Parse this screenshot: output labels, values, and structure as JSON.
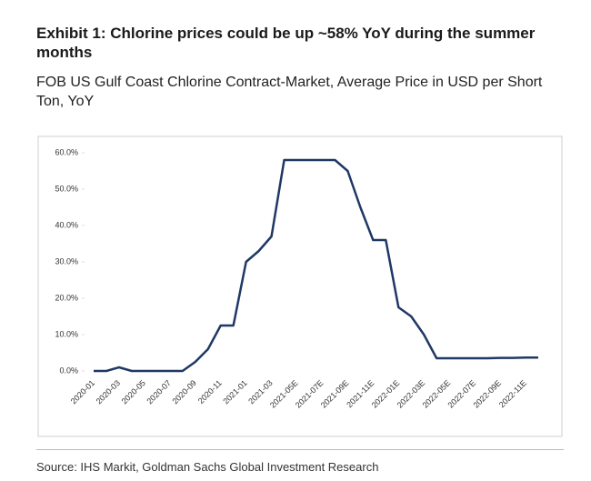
{
  "chart_data": {
    "type": "line",
    "title": "Exhibit 1: Chlorine prices could be up ~58% YoY during the summer months",
    "subtitle": "FOB US Gulf Coast Chlorine Contract-Market, Average Price in USD per Short Ton, YoY",
    "source": "Source: IHS Markit, Goldman Sachs Global Investment Research",
    "categories": [
      "2020-01",
      null,
      "2020-03",
      null,
      "2020-05",
      null,
      "2020-07",
      null,
      "2020-09",
      null,
      "2020-11",
      null,
      "2021-01",
      null,
      "2021-03",
      null,
      "2021-05E",
      null,
      "2021-07E",
      null,
      "2021-09E",
      null,
      "2021-11E",
      null,
      "2022-01E",
      null,
      "2022-03E",
      null,
      "2022-05E",
      null,
      "2022-07E",
      null,
      "2022-09E",
      null,
      "2022-11E",
      null
    ],
    "values": [
      0,
      0,
      1,
      0,
      0,
      0,
      0,
      0,
      2.5,
      6,
      12.5,
      12.5,
      30,
      33,
      37,
      58,
      58,
      58,
      58,
      58,
      55,
      45,
      36,
      36,
      17.5,
      15,
      10,
      3.5,
      3.5,
      3.5,
      3.5,
      3.5,
      3.6,
      3.6,
      3.7,
      3.7
    ],
    "color": "#1f3864",
    "ylim": [
      0,
      60
    ],
    "yticks": [
      {
        "value": 0,
        "label": "0.0%"
      },
      {
        "value": 10,
        "label": "10.0%"
      },
      {
        "value": 20,
        "label": "20.0%"
      },
      {
        "value": 30,
        "label": "30.0%"
      },
      {
        "value": 40,
        "label": "40.0%"
      },
      {
        "value": 50,
        "label": "50.0%"
      },
      {
        "value": 60,
        "label": "60.0%"
      }
    ],
    "grid": false
  }
}
